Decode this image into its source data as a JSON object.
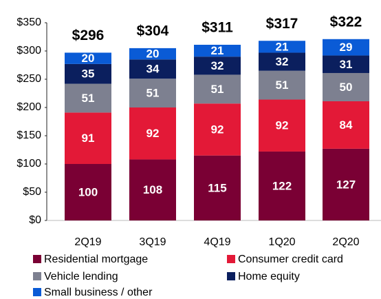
{
  "chart_data": {
    "type": "stacked_bar",
    "categories": [
      "2Q19",
      "3Q19",
      "4Q19",
      "1Q20",
      "2Q20"
    ],
    "series": [
      {
        "name": "Residential mortgage",
        "color": "#7a0034",
        "values": [
          100,
          108,
          115,
          122,
          127
        ]
      },
      {
        "name": "Consumer credit card",
        "color": "#e31937",
        "values": [
          91,
          92,
          92,
          92,
          84
        ]
      },
      {
        "name": "Vehicle lending",
        "color": "#7d8090",
        "values": [
          51,
          51,
          51,
          51,
          50
        ]
      },
      {
        "name": "Home equity",
        "color": "#0b1f5e",
        "values": [
          35,
          34,
          32,
          32,
          31
        ]
      },
      {
        "name": "Small business / other",
        "color": "#0a5bd6",
        "values": [
          20,
          20,
          21,
          21,
          29
        ]
      }
    ],
    "totals": [
      296,
      304,
      311,
      317,
      322
    ],
    "total_labels": [
      "$296",
      "$304",
      "$311",
      "$317",
      "$322"
    ],
    "ylim": [
      0,
      350
    ],
    "yticks": [
      {
        "value": 0,
        "label": "$0"
      },
      {
        "value": 50,
        "label": "$50"
      },
      {
        "value": 100,
        "label": "$100"
      },
      {
        "value": 150,
        "label": "$150"
      },
      {
        "value": 200,
        "label": "$200"
      },
      {
        "value": 250,
        "label": "$250"
      },
      {
        "value": 300,
        "label": "$300"
      },
      {
        "value": 350,
        "label": "$350"
      }
    ],
    "grid": false,
    "legend": "bottom"
  }
}
